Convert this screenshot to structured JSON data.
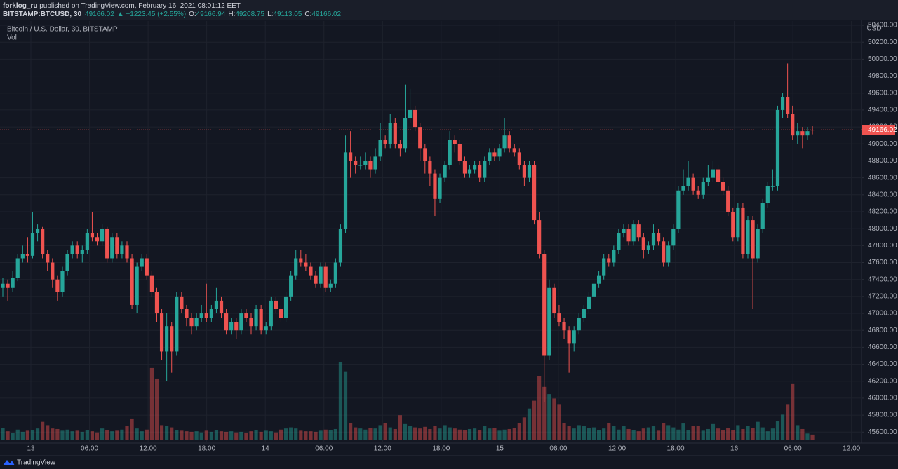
{
  "header": {
    "author": "forklog_ru",
    "published": " published on TradingView.com, February 16, 2021 08:01:12 EET",
    "symbol": "BITSTAMP:BTCUSD, 30",
    "change": "▲ +1223.45 (+2.55%)",
    "ohlc_labels": [
      "O:",
      "H:",
      "L:",
      "C:"
    ]
  },
  "footer": {
    "brand": "TradingView"
  },
  "chart_data": {
    "type": "candlestick",
    "legend": "Bitcoin / U.S. Dollar, 30, BITSTAMP",
    "volume_label": "Vol",
    "currency": "USD",
    "up_color": "#26a69a",
    "down_color": "#ef5350",
    "grid": true,
    "ylim": [
      45470,
      50450
    ],
    "yticks": [
      {
        "value": 45600,
        "label": "45600.00"
      },
      {
        "value": 45800,
        "label": "45800.00"
      },
      {
        "value": 46000,
        "label": "46000.00"
      },
      {
        "value": 46200,
        "label": "46200.00"
      },
      {
        "value": 46400,
        "label": "46400.00"
      },
      {
        "value": 46600,
        "label": "46600.00"
      },
      {
        "value": 46800,
        "label": "46800.00"
      },
      {
        "value": 47000,
        "label": "47000.00"
      },
      {
        "value": 47200,
        "label": "47200.00"
      },
      {
        "value": 47400,
        "label": "47400.00"
      },
      {
        "value": 47600,
        "label": "47600.00"
      },
      {
        "value": 47800,
        "label": "47800.00"
      },
      {
        "value": 48000,
        "label": "48000.00"
      },
      {
        "value": 48200,
        "label": "48200.00"
      },
      {
        "value": 48400,
        "label": "48400.00"
      },
      {
        "value": 48600,
        "label": "48600.00"
      },
      {
        "value": 48800,
        "label": "48800.00"
      },
      {
        "value": 49000,
        "label": "49000.00"
      },
      {
        "value": 49200,
        "label": "49200.00"
      },
      {
        "value": 49400,
        "label": "49400.00"
      },
      {
        "value": 49600,
        "label": "49600.00"
      },
      {
        "value": 49800,
        "label": "49800.00"
      },
      {
        "value": 50000,
        "label": "50000.00"
      },
      {
        "value": 50200,
        "label": "50200.00"
      },
      {
        "value": 50400,
        "label": "50400.00"
      }
    ],
    "xtick_labels": [
      "13",
      "06:00",
      "12:00",
      "18:00",
      "14",
      "06:00",
      "12:00",
      "18:00",
      "15",
      "06:00",
      "12:00",
      "18:00",
      "16",
      "06:00",
      "12:00"
    ],
    "ohlc": [
      [
        47300,
        47420,
        47200,
        47350
      ],
      [
        47350,
        47400,
        47150,
        47300
      ],
      [
        47300,
        47500,
        47250,
        47420
      ],
      [
        47420,
        47700,
        47380,
        47650
      ],
      [
        47650,
        47800,
        47600,
        47700
      ],
      [
        47700,
        47900,
        47600,
        47680
      ],
      [
        47680,
        48200,
        47650,
        47950
      ],
      [
        47950,
        48050,
        47850,
        48000
      ],
      [
        48000,
        48020,
        47650,
        47700
      ],
      [
        47700,
        47750,
        47500,
        47600
      ],
      [
        47600,
        47650,
        47300,
        47400
      ],
      [
        47400,
        47450,
        47150,
        47250
      ],
      [
        47250,
        47550,
        47200,
        47500
      ],
      [
        47500,
        47750,
        47450,
        47700
      ],
      [
        47700,
        47850,
        47650,
        47800
      ],
      [
        47800,
        47850,
        47650,
        47700
      ],
      [
        47700,
        47800,
        47600,
        47750
      ],
      [
        47750,
        48000,
        47700,
        47950
      ],
      [
        47950,
        48200,
        47850,
        47900
      ],
      [
        47900,
        47950,
        47800,
        47850
      ],
      [
        47850,
        48050,
        47800,
        48000
      ],
      [
        48000,
        48020,
        47600,
        47650
      ],
      [
        47650,
        47950,
        47600,
        47900
      ],
      [
        47900,
        47950,
        47650,
        47700
      ],
      [
        47700,
        47850,
        47650,
        47800
      ],
      [
        47800,
        47850,
        47600,
        47650
      ],
      [
        47650,
        47700,
        47050,
        47100
      ],
      [
        47100,
        47600,
        47000,
        47550
      ],
      [
        47550,
        47700,
        47500,
        47650
      ],
      [
        47650,
        47700,
        47400,
        47450
      ],
      [
        47450,
        47500,
        47200,
        47250
      ],
      [
        47250,
        47300,
        46900,
        47000
      ],
      [
        47000,
        47050,
        46450,
        46550
      ],
      [
        46550,
        47000,
        46200,
        46850
      ],
      [
        46850,
        46900,
        46300,
        46550
      ],
      [
        46550,
        47250,
        46500,
        47200
      ],
      [
        47200,
        47250,
        47000,
        47050
      ],
      [
        47050,
        47100,
        46850,
        46950
      ],
      [
        46950,
        47000,
        46750,
        46850
      ],
      [
        46850,
        47000,
        46800,
        46950
      ],
      [
        46950,
        47100,
        46900,
        47000
      ],
      [
        47000,
        47350,
        46900,
        46950
      ],
      [
        46950,
        47100,
        46900,
        47050
      ],
      [
        47050,
        47300,
        47000,
        47150
      ],
      [
        47150,
        47200,
        46950,
        47000
      ],
      [
        47000,
        47050,
        46750,
        46800
      ],
      [
        46800,
        46950,
        46750,
        46900
      ],
      [
        46900,
        46950,
        46700,
        46800
      ],
      [
        46800,
        47050,
        46750,
        47000
      ],
      [
        47000,
        47050,
        46900,
        46950
      ],
      [
        46950,
        47000,
        46750,
        46850
      ],
      [
        46850,
        47100,
        46800,
        47050
      ],
      [
        47050,
        47100,
        46750,
        46800
      ],
      [
        46800,
        46900,
        46750,
        46850
      ],
      [
        46850,
        47200,
        46800,
        47150
      ],
      [
        47150,
        47200,
        47000,
        47050
      ],
      [
        47050,
        47100,
        46900,
        46950
      ],
      [
        46950,
        47250,
        46900,
        47200
      ],
      [
        47200,
        47500,
        47150,
        47450
      ],
      [
        47450,
        47750,
        47400,
        47650
      ],
      [
        47650,
        47750,
        47550,
        47600
      ],
      [
        47600,
        47700,
        47500,
        47550
      ],
      [
        47550,
        47600,
        47400,
        47450
      ],
      [
        47450,
        47500,
        47300,
        47350
      ],
      [
        47350,
        47600,
        47300,
        47550
      ],
      [
        47550,
        47600,
        47250,
        47300
      ],
      [
        47300,
        47400,
        47250,
        47350
      ],
      [
        47350,
        47650,
        47300,
        47600
      ],
      [
        47600,
        48050,
        47550,
        48000
      ],
      [
        48000,
        49100,
        47950,
        48900
      ],
      [
        48900,
        49150,
        48600,
        48800
      ],
      [
        48800,
        48850,
        48650,
        48750
      ],
      [
        48750,
        48850,
        48700,
        48750
      ],
      [
        48750,
        48900,
        48700,
        48800
      ],
      [
        48800,
        48850,
        48600,
        48700
      ],
      [
        48700,
        48950,
        48650,
        48850
      ],
      [
        48850,
        49250,
        48800,
        49050
      ],
      [
        49050,
        49100,
        48950,
        49000
      ],
      [
        49000,
        49350,
        48950,
        49250
      ],
      [
        49250,
        49300,
        48950,
        49000
      ],
      [
        49000,
        49050,
        48850,
        48950
      ],
      [
        48950,
        49700,
        48900,
        49300
      ],
      [
        49300,
        49650,
        49250,
        49400
      ],
      [
        49400,
        49450,
        49150,
        49200
      ],
      [
        49200,
        49250,
        48800,
        48950
      ],
      [
        48950,
        49000,
        48650,
        48800
      ],
      [
        48800,
        48850,
        48500,
        48650
      ],
      [
        48650,
        48700,
        48150,
        48350
      ],
      [
        48350,
        48650,
        48300,
        48600
      ],
      [
        48600,
        48800,
        48550,
        48750
      ],
      [
        48750,
        49150,
        48700,
        49050
      ],
      [
        49050,
        49100,
        48900,
        49000
      ],
      [
        49000,
        49050,
        48750,
        48800
      ],
      [
        48800,
        48850,
        48600,
        48650
      ],
      [
        48650,
        48750,
        48600,
        48700
      ],
      [
        48700,
        48800,
        48650,
        48750
      ],
      [
        48750,
        48800,
        48550,
        48600
      ],
      [
        48600,
        48850,
        48550,
        48800
      ],
      [
        48800,
        48950,
        48750,
        48900
      ],
      [
        48900,
        48950,
        48800,
        48850
      ],
      [
        48850,
        49000,
        48800,
        48950
      ],
      [
        48950,
        49300,
        48900,
        49100
      ],
      [
        49100,
        49150,
        48900,
        48950
      ],
      [
        48950,
        49000,
        48850,
        48900
      ],
      [
        48900,
        48950,
        48700,
        48750
      ],
      [
        48750,
        48800,
        48500,
        48600
      ],
      [
        48600,
        48800,
        48550,
        48750
      ],
      [
        48750,
        48800,
        48050,
        48100
      ],
      [
        48100,
        48200,
        47650,
        47700
      ],
      [
        47700,
        47750,
        45950,
        46500
      ],
      [
        46500,
        47400,
        46450,
        47300
      ],
      [
        47300,
        47350,
        46950,
        47000
      ],
      [
        47000,
        47100,
        46850,
        46900
      ],
      [
        46900,
        46950,
        46700,
        46800
      ],
      [
        46800,
        46850,
        46300,
        46650
      ],
      [
        46650,
        46850,
        46550,
        46800
      ],
      [
        46800,
        47000,
        46750,
        46950
      ],
      [
        46950,
        47100,
        46900,
        47050
      ],
      [
        47050,
        47250,
        47000,
        47200
      ],
      [
        47200,
        47400,
        47150,
        47350
      ],
      [
        47350,
        47500,
        47300,
        47450
      ],
      [
        47450,
        47700,
        47400,
        47650
      ],
      [
        47650,
        47700,
        47550,
        47600
      ],
      [
        47600,
        47800,
        47550,
        47750
      ],
      [
        47750,
        48000,
        47700,
        47950
      ],
      [
        47950,
        48050,
        47900,
        48000
      ],
      [
        48000,
        48050,
        47800,
        47850
      ],
      [
        47850,
        48100,
        47800,
        48050
      ],
      [
        48050,
        48100,
        47850,
        47900
      ],
      [
        47900,
        47950,
        47650,
        47750
      ],
      [
        47750,
        47850,
        47700,
        47800
      ],
      [
        47800,
        48050,
        47750,
        47950
      ],
      [
        47950,
        48000,
        47800,
        47850
      ],
      [
        47850,
        47900,
        47550,
        47600
      ],
      [
        47600,
        47850,
        47550,
        47800
      ],
      [
        47800,
        48050,
        47750,
        48000
      ],
      [
        48000,
        48500,
        47950,
        48450
      ],
      [
        48450,
        48700,
        48400,
        48500
      ],
      [
        48500,
        48800,
        48450,
        48600
      ],
      [
        48600,
        48650,
        48400,
        48450
      ],
      [
        48450,
        48500,
        48350,
        48400
      ],
      [
        48400,
        48600,
        48350,
        48550
      ],
      [
        48550,
        48750,
        48500,
        48600
      ],
      [
        48600,
        48800,
        48550,
        48700
      ],
      [
        48700,
        48750,
        48500,
        48550
      ],
      [
        48550,
        48600,
        48400,
        48450
      ],
      [
        48450,
        48500,
        48150,
        48200
      ],
      [
        48200,
        48250,
        47850,
        47900
      ],
      [
        47900,
        48300,
        47850,
        48250
      ],
      [
        48250,
        48300,
        47650,
        47700
      ],
      [
        47700,
        48150,
        47650,
        48100
      ],
      [
        48100,
        48150,
        47050,
        47650
      ],
      [
        47650,
        48050,
        47600,
        48000
      ],
      [
        48000,
        48350,
        47950,
        48300
      ],
      [
        48300,
        48550,
        48250,
        48500
      ],
      [
        48500,
        48700,
        48450,
        48500
      ],
      [
        48500,
        49450,
        48450,
        49400
      ],
      [
        49400,
        49600,
        49300,
        49550
      ],
      [
        49550,
        49950,
        49300,
        49350
      ],
      [
        49350,
        49450,
        49050,
        49100
      ],
      [
        49100,
        49250,
        49000,
        49150
      ],
      [
        49150,
        49200,
        48950,
        49100
      ],
      [
        49100,
        49200,
        49050,
        49150
      ],
      [
        49166.94,
        49208.75,
        49113.05,
        49166.02
      ]
    ],
    "volume": [
      210,
      150,
      120,
      180,
      140,
      160,
      170,
      200,
      320,
      260,
      200,
      190,
      160,
      180,
      150,
      160,
      140,
      170,
      150,
      130,
      200,
      170,
      150,
      160,
      180,
      240,
      380,
      200,
      150,
      180,
      1290,
      1100,
      260,
      250,
      220,
      170,
      160,
      150,
      140,
      150,
      130,
      160,
      140,
      170,
      150,
      140,
      150,
      130,
      140,
      120,
      150,
      170,
      140,
      160,
      150,
      130,
      180,
      200,
      220,
      200,
      160,
      150,
      150,
      140,
      160,
      180,
      170,
      190,
      1390,
      1230,
      300,
      220,
      200,
      180,
      210,
      200,
      260,
      300,
      220,
      190,
      440,
      280,
      240,
      220,
      200,
      230,
      190,
      250,
      200,
      260,
      220,
      200,
      180,
      170,
      190,
      200,
      170,
      240,
      200,
      210,
      160,
      180,
      190,
      210,
      300,
      400,
      560,
      700,
      1150,
      950,
      820,
      740,
      640,
      300,
      240,
      200,
      260,
      240,
      210,
      220,
      170,
      200,
      300,
      250,
      180,
      240,
      190,
      170,
      150,
      200,
      220,
      240,
      160,
      300,
      260,
      220,
      180,
      290,
      170,
      240,
      250,
      160,
      190,
      280,
      200,
      170,
      210,
      170,
      260,
      190,
      250,
      210,
      320,
      220,
      150,
      200,
      340,
      450,
      640,
      1000,
      260,
      190,
      110,
      90
    ]
  }
}
